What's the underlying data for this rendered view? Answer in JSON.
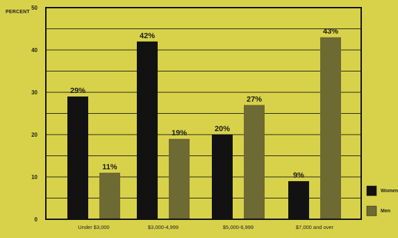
{
  "chart_data": {
    "type": "bar",
    "title": "",
    "xlabel": "",
    "ylabel": "PERCENT",
    "ylim": [
      0,
      50
    ],
    "yticks": [
      "0",
      "10",
      "20",
      "30",
      "40",
      "50"
    ],
    "categories": [
      "Under $3,000",
      "$3,000-4,999",
      "$5,000-6,999",
      "$7,000 and over"
    ],
    "series": [
      {
        "name": "Women",
        "values": [
          29,
          42,
          20,
          9
        ],
        "labels": [
          "29%",
          "42%",
          "20%",
          "9%"
        ],
        "color": "#121212"
      },
      {
        "name": "Men",
        "values": [
          11,
          19,
          27,
          43
        ],
        "labels": [
          "11%",
          "19%",
          "27%",
          "43%"
        ],
        "color": "#6d6a33"
      }
    ],
    "grid": true,
    "legend_position": "bottom-right",
    "background_color": "#d8d24a"
  }
}
